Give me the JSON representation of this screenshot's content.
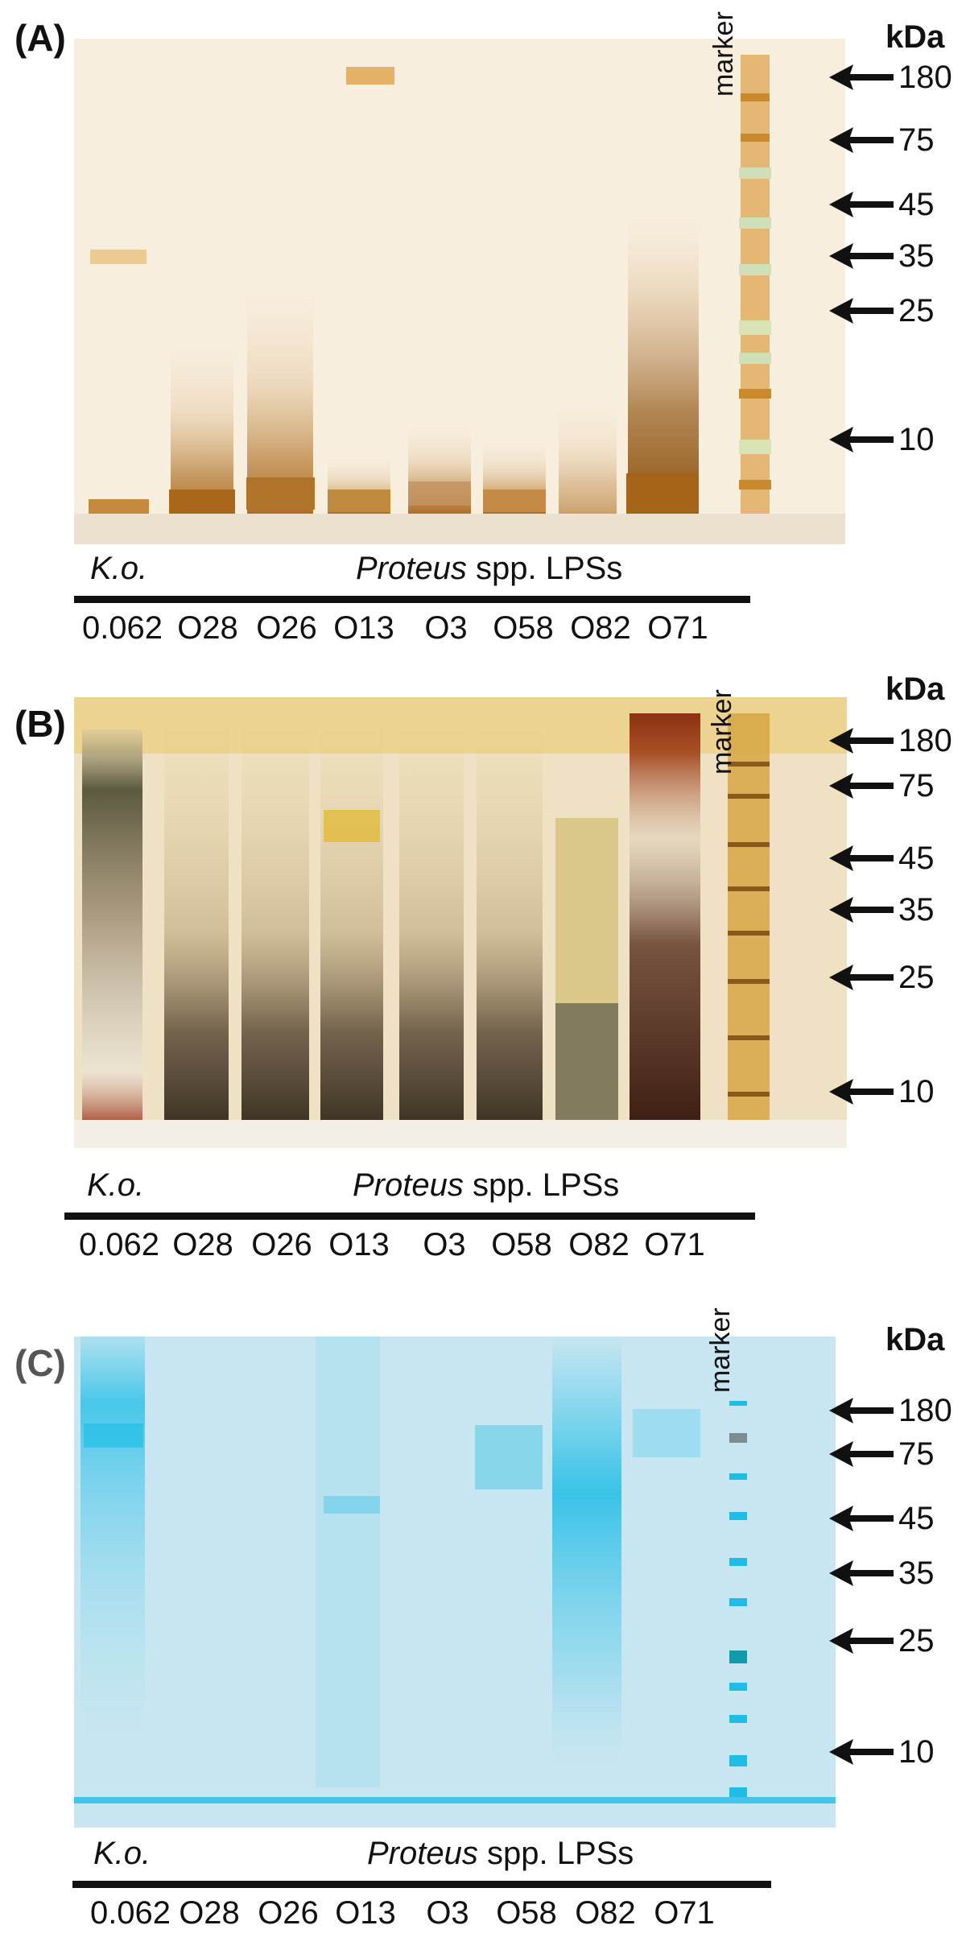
{
  "panels": [
    {
      "label": "(A)",
      "stain": "silver",
      "marker_label": "marker",
      "kda_label": "kDa",
      "markers": [
        "180",
        "75",
        "45",
        "35",
        "25",
        "10"
      ],
      "caption": {
        "ko": "K.o.",
        "genus": "Proteus",
        "suffix": " spp. LPSs"
      },
      "lanes": [
        "0.062",
        "O28",
        "O26",
        "O13",
        "O3",
        "O58",
        "O82",
        "O71"
      ]
    },
    {
      "label": "(B)",
      "stain": "silver",
      "marker_label": "marker",
      "kda_label": "kDa",
      "markers": [
        "180",
        "75",
        "45",
        "35",
        "25",
        "10"
      ],
      "caption": {
        "ko": "K.o.",
        "genus": "Proteus",
        "suffix": " spp. LPSs"
      },
      "lanes": [
        "0.062",
        "O28",
        "O26",
        "O13",
        "O3",
        "O58",
        "O82",
        "O71"
      ]
    },
    {
      "label": "(C)",
      "stain": "alcian-blue",
      "marker_label": "marker",
      "kda_label": "kDa",
      "markers": [
        "180",
        "75",
        "45",
        "35",
        "25",
        "10"
      ],
      "caption": {
        "ko": "K.o.",
        "genus": "Proteus",
        "suffix": " spp. LPSs"
      },
      "lanes": [
        "0.062",
        "O28",
        "O26",
        "O13",
        "O3",
        "O58",
        "O82",
        "O71"
      ]
    }
  ],
  "colors": {
    "gel_a": "#f4e9d6",
    "gel_b": "#efe2c4",
    "gel_c": "#c7e6f1",
    "silver_band": "#8a5a1a",
    "blue_band": "#1fbde6"
  }
}
